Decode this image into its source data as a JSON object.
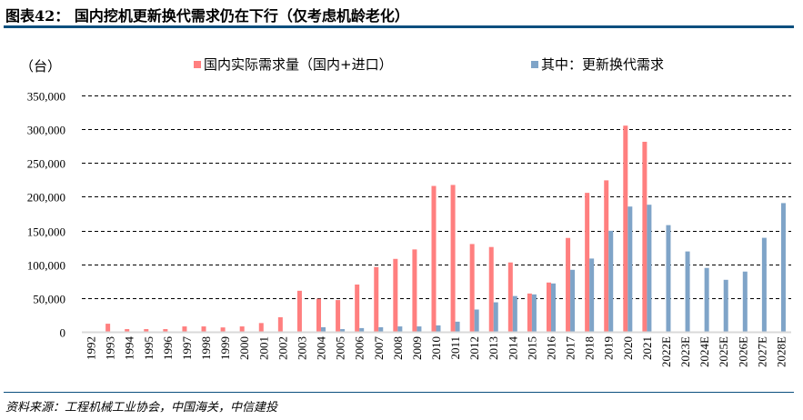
{
  "header": {
    "title": "图表42： 国内挖机更新换代需求仍在下行（仅考虑机龄老化）"
  },
  "footer": {
    "source": "资料来源：工程机械工业协会，中国海关，中信建投"
  },
  "colors": {
    "rule": "#0B4F7E",
    "series_domestic": "#FF7F7F",
    "series_replacement": "#7FA4C8",
    "gridline": "#000000",
    "axis": "#D9D9D9"
  },
  "chart_data": {
    "type": "bar",
    "title": "国内挖机更新换代需求仍在下行（仅考虑机龄老化）",
    "ylabel": "（台）",
    "xlabel": "",
    "ylim": [
      0,
      350000
    ],
    "yticks": [
      0,
      50000,
      100000,
      150000,
      200000,
      250000,
      300000,
      350000
    ],
    "ytick_labels": [
      "0",
      "50,000",
      "100,000",
      "150,000",
      "200,000",
      "250,000",
      "300,000",
      "350,000"
    ],
    "grid": true,
    "grid_style": "dashed",
    "legend_position": "top",
    "categories": [
      "1992",
      "1993",
      "1994",
      "1995",
      "1996",
      "1997",
      "1998",
      "1999",
      "2000",
      "2001",
      "2002",
      "2003",
      "2004",
      "2005",
      "2006",
      "2007",
      "2008",
      "2009",
      "2010",
      "2011",
      "2012",
      "2013",
      "2014",
      "2015",
      "2016",
      "2017",
      "2018",
      "2019",
      "2020",
      "2021",
      "2022E",
      "2023E",
      "2024E",
      "2025E",
      "2026E",
      "2027E",
      "2028E"
    ],
    "series": [
      {
        "name": "国内实际需求量（国内+进口）",
        "values": [
          0,
          12000,
          4000,
          4000,
          4000,
          8000,
          8000,
          6500,
          8000,
          13000,
          21600,
          60800,
          49000,
          47000,
          70000,
          96000,
          108000,
          122000,
          216000,
          217500,
          130000,
          125600,
          102700,
          56700,
          73000,
          139000,
          205800,
          224300,
          305300,
          281400,
          null,
          null,
          null,
          null,
          null,
          null,
          null
        ]
      },
      {
        "name": "其中：更新换代需求",
        "values": [
          null,
          null,
          null,
          null,
          null,
          null,
          null,
          null,
          null,
          null,
          null,
          null,
          6800,
          4000,
          5500,
          6800,
          8000,
          8000,
          9500,
          15000,
          33000,
          43700,
          53000,
          55400,
          71600,
          91800,
          108500,
          149600,
          185500,
          188200,
          158000,
          119000,
          94600,
          77000,
          89200,
          139200,
          190600
        ]
      }
    ]
  }
}
